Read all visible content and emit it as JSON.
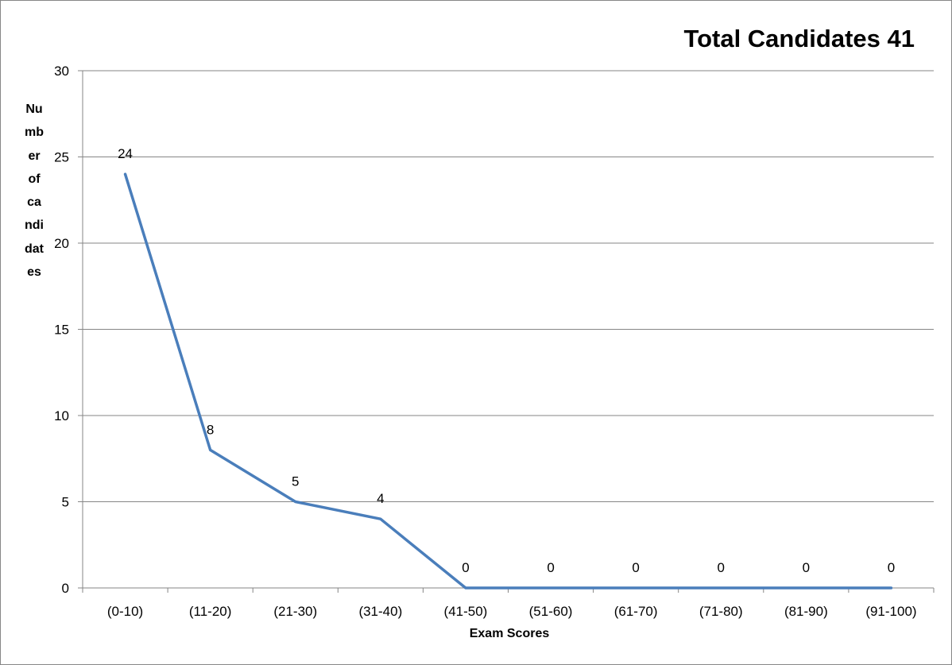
{
  "chart_data": {
    "type": "line",
    "title": "Total Candidates 41",
    "xlabel": "Exam Scores",
    "ylabel": "Number of candidates",
    "categories": [
      "(0-10)",
      "(11-20)",
      "(21-30)",
      "(31-40)",
      "(41-50)",
      "(51-60)",
      "(61-70)",
      "(71-80)",
      "(81-90)",
      "(91-100)"
    ],
    "series": [
      {
        "values": [
          24,
          8,
          5,
          4,
          0,
          0,
          0,
          0,
          0,
          0
        ],
        "color": "#4a7ebb"
      }
    ],
    "ylim": [
      0,
      30
    ],
    "yticks": [
      0,
      5,
      10,
      15,
      20,
      25,
      30
    ],
    "grid": true,
    "legend": "none",
    "data_labels": true
  }
}
